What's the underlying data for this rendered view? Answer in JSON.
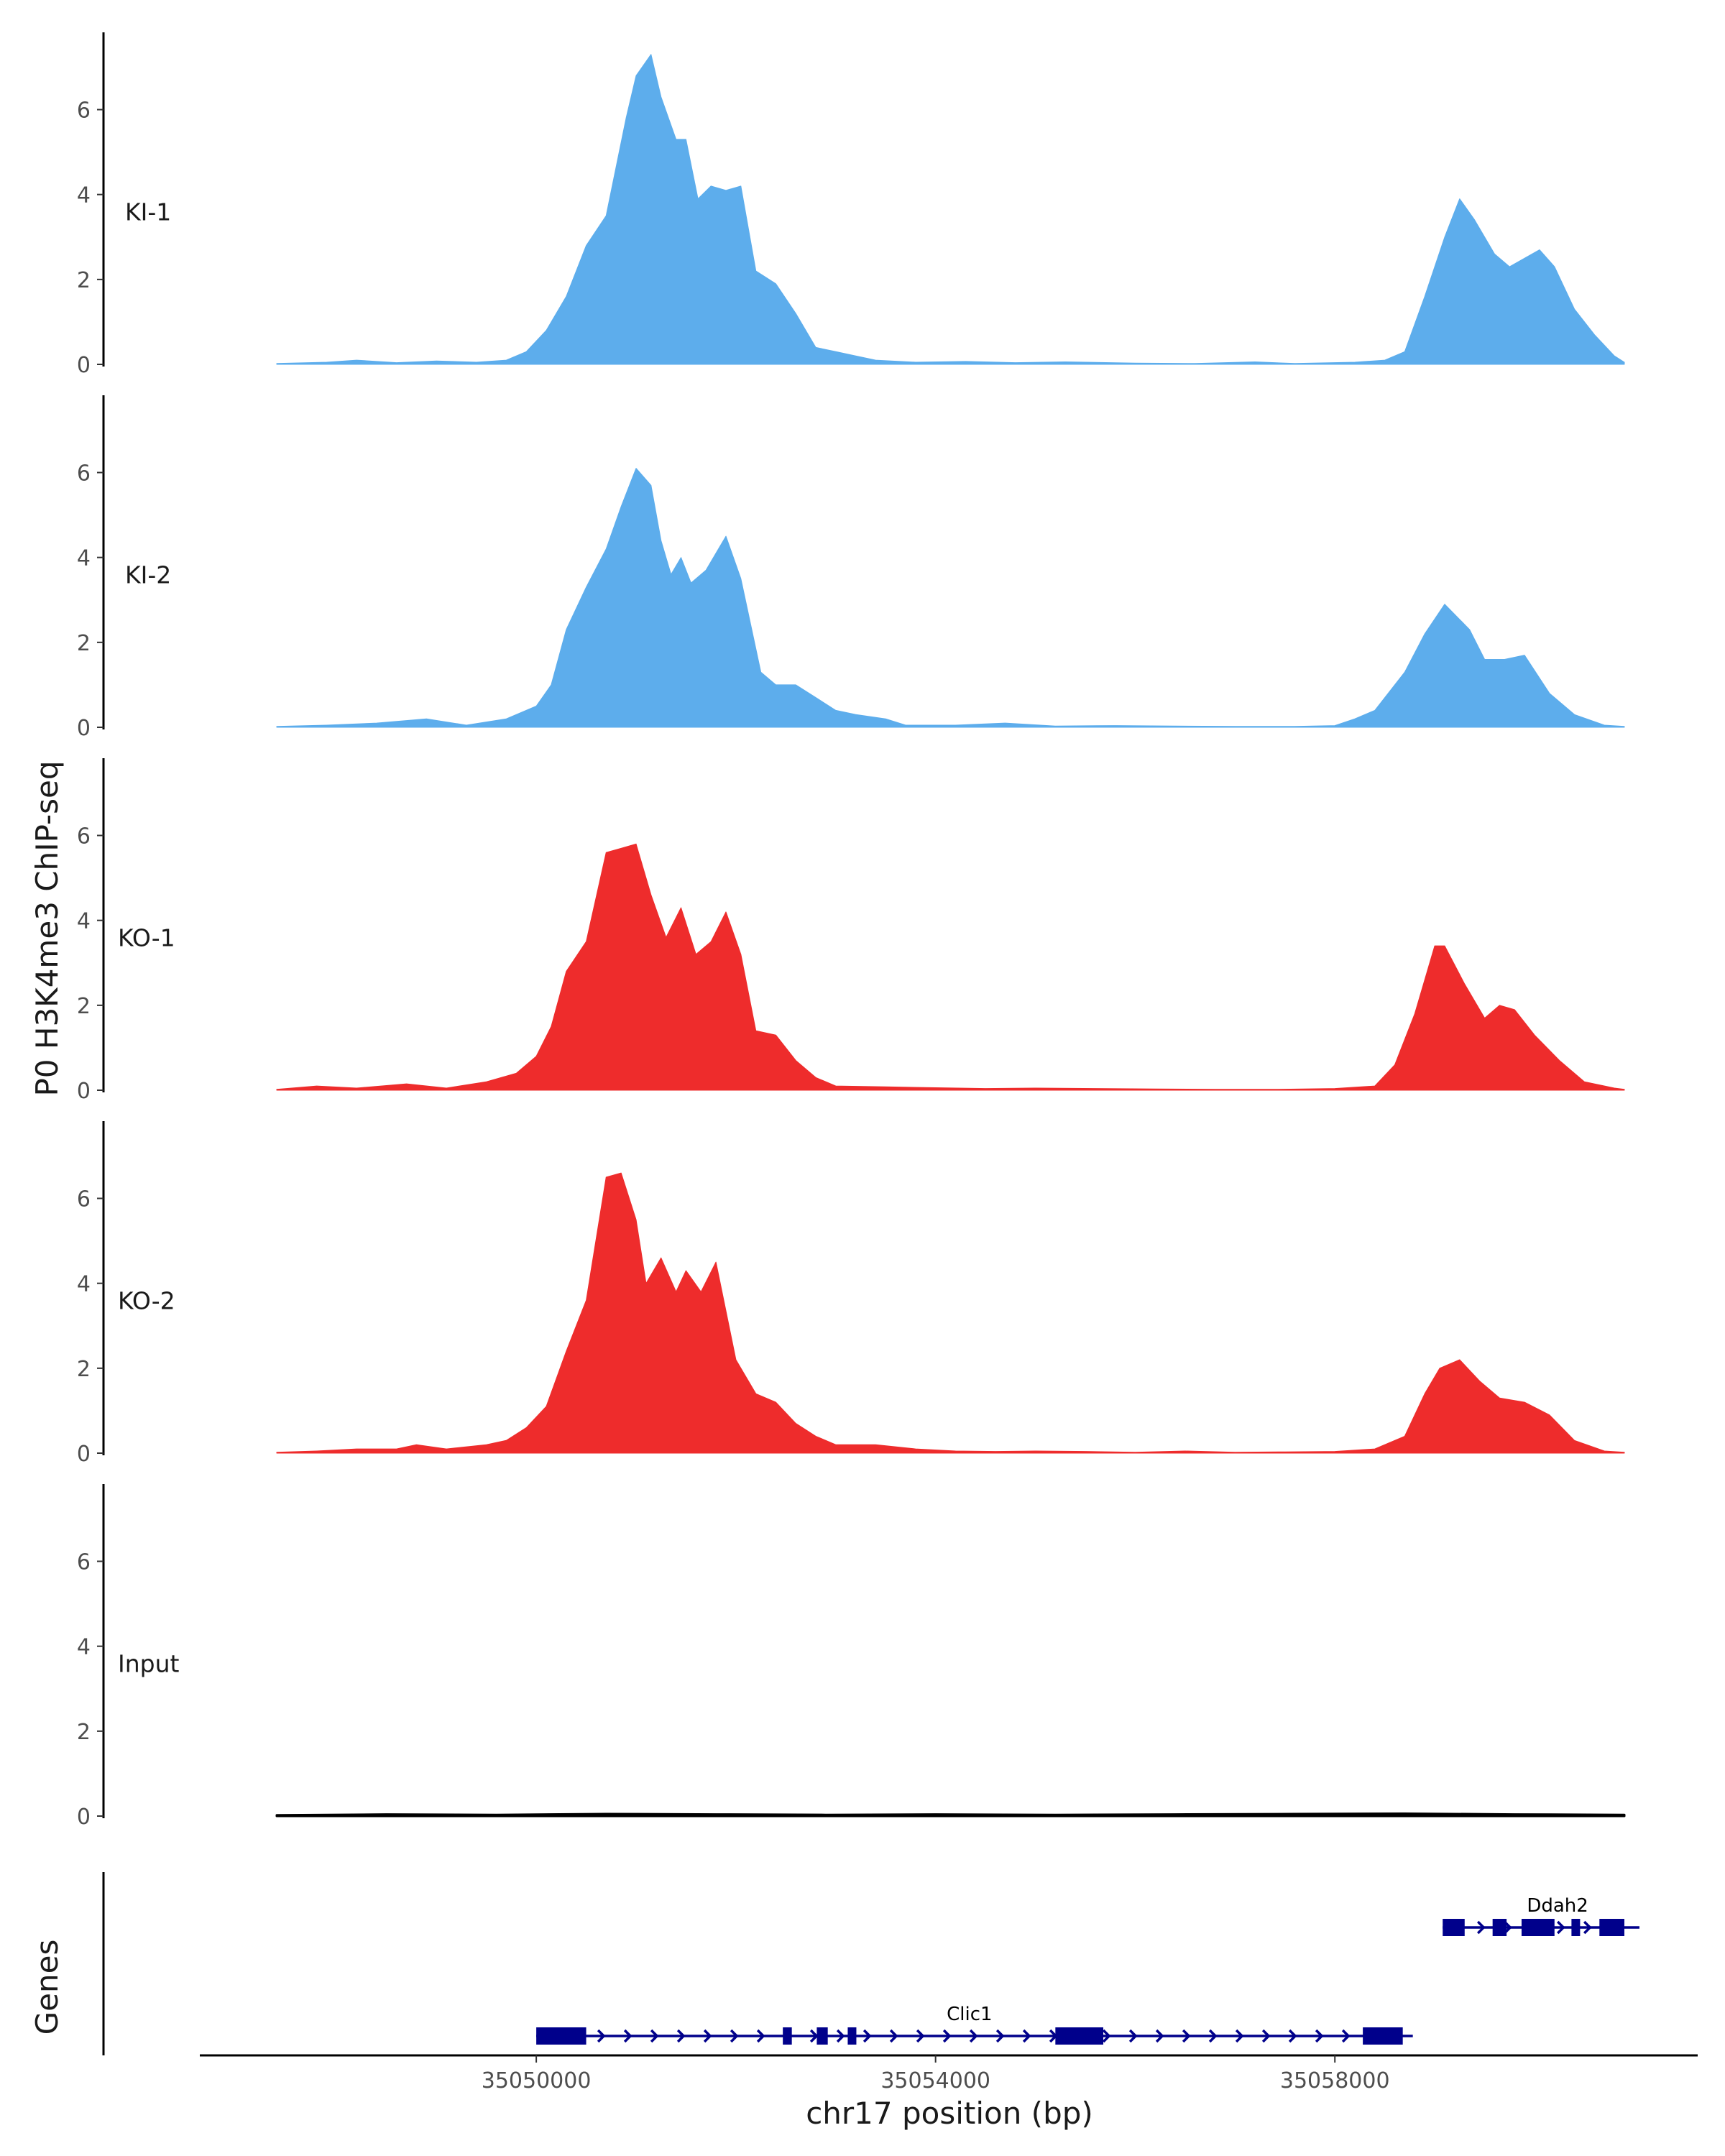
{
  "chart_data": [
    {
      "type": "area",
      "title": "",
      "ylabel": "P0 H3K4me3 ChIP-seq",
      "xlabel": "chr17 position (bp)",
      "xlim": [
        35047400,
        35060900
      ],
      "ylim": [
        0,
        7.6
      ],
      "yticks": [
        0,
        2,
        4,
        6
      ],
      "x_unit": "bp",
      "tracks": [
        {
          "name": "KI-1",
          "color": "#5DADEC",
          "points": [
            [
              35047400,
              0.02
            ],
            [
              35047900,
              0.05
            ],
            [
              35048200,
              0.1
            ],
            [
              35048600,
              0.04
            ],
            [
              35049000,
              0.08
            ],
            [
              35049400,
              0.05
            ],
            [
              35049700,
              0.1
            ],
            [
              35049900,
              0.3
            ],
            [
              35050100,
              0.8
            ],
            [
              35050300,
              1.6
            ],
            [
              35050500,
              2.8
            ],
            [
              35050700,
              3.5
            ],
            [
              35050900,
              5.8
            ],
            [
              35051000,
              6.8
            ],
            [
              35051150,
              7.3
            ],
            [
              35051250,
              6.3
            ],
            [
              35051400,
              5.3
            ],
            [
              35051500,
              5.3
            ],
            [
              35051620,
              3.9
            ],
            [
              35051750,
              4.2
            ],
            [
              35051900,
              4.1
            ],
            [
              35052050,
              4.2
            ],
            [
              35052200,
              2.2
            ],
            [
              35052400,
              1.9
            ],
            [
              35052600,
              1.2
            ],
            [
              35052800,
              0.4
            ],
            [
              35053000,
              0.3
            ],
            [
              35053200,
              0.2
            ],
            [
              35053400,
              0.1
            ],
            [
              35053800,
              0.05
            ],
            [
              35054300,
              0.07
            ],
            [
              35054800,
              0.04
            ],
            [
              35055300,
              0.06
            ],
            [
              35056000,
              0.03
            ],
            [
              35056600,
              0.02
            ],
            [
              35057200,
              0.06
            ],
            [
              35057600,
              0.02
            ],
            [
              35058200,
              0.05
            ],
            [
              35058500,
              0.1
            ],
            [
              35058700,
              0.3
            ],
            [
              35058900,
              1.6
            ],
            [
              35059100,
              3.0
            ],
            [
              35059250,
              3.9
            ],
            [
              35059400,
              3.4
            ],
            [
              35059600,
              2.6
            ],
            [
              35059750,
              2.3
            ],
            [
              35059900,
              2.5
            ],
            [
              35060050,
              2.7
            ],
            [
              35060200,
              2.3
            ],
            [
              35060400,
              1.3
            ],
            [
              35060600,
              0.7
            ],
            [
              35060800,
              0.2
            ],
            [
              35060900,
              0.05
            ]
          ]
        },
        {
          "name": "KI-2",
          "color": "#5DADEC",
          "points": [
            [
              35047400,
              0.02
            ],
            [
              35047900,
              0.05
            ],
            [
              35048400,
              0.1
            ],
            [
              35048900,
              0.2
            ],
            [
              35049300,
              0.05
            ],
            [
              35049700,
              0.2
            ],
            [
              35050000,
              0.5
            ],
            [
              35050150,
              1.0
            ],
            [
              35050300,
              2.3
            ],
            [
              35050500,
              3.3
            ],
            [
              35050700,
              4.2
            ],
            [
              35050850,
              5.2
            ],
            [
              35051000,
              6.1
            ],
            [
              35051150,
              5.7
            ],
            [
              35051250,
              4.4
            ],
            [
              35051350,
              3.6
            ],
            [
              35051450,
              4.0
            ],
            [
              35051550,
              3.4
            ],
            [
              35051700,
              3.7
            ],
            [
              35051900,
              4.5
            ],
            [
              35052050,
              3.5
            ],
            [
              35052250,
              1.3
            ],
            [
              35052400,
              1.0
            ],
            [
              35052600,
              1.0
            ],
            [
              35052800,
              0.7
            ],
            [
              35053000,
              0.4
            ],
            [
              35053200,
              0.3
            ],
            [
              35053500,
              0.2
            ],
            [
              35053700,
              0.05
            ],
            [
              35054200,
              0.05
            ],
            [
              35054700,
              0.1
            ],
            [
              35055200,
              0.03
            ],
            [
              35055800,
              0.04
            ],
            [
              35056400,
              0.03
            ],
            [
              35057000,
              0.02
            ],
            [
              35057600,
              0.02
            ],
            [
              35058000,
              0.04
            ],
            [
              35058200,
              0.2
            ],
            [
              35058400,
              0.4
            ],
            [
              35058700,
              1.3
            ],
            [
              35058900,
              2.2
            ],
            [
              35059100,
              2.9
            ],
            [
              35059350,
              2.3
            ],
            [
              35059500,
              1.6
            ],
            [
              35059700,
              1.6
            ],
            [
              35059900,
              1.7
            ],
            [
              35060150,
              0.8
            ],
            [
              35060400,
              0.3
            ],
            [
              35060700,
              0.05
            ],
            [
              35060900,
              0.02
            ]
          ]
        },
        {
          "name": "KO-1",
          "color": "#EE2C2C",
          "points": [
            [
              35047400,
              0.02
            ],
            [
              35047800,
              0.1
            ],
            [
              35048200,
              0.05
            ],
            [
              35048700,
              0.15
            ],
            [
              35049100,
              0.05
            ],
            [
              35049500,
              0.2
            ],
            [
              35049800,
              0.4
            ],
            [
              35050000,
              0.8
            ],
            [
              35050150,
              1.5
            ],
            [
              35050300,
              2.8
            ],
            [
              35050500,
              3.5
            ],
            [
              35050700,
              5.6
            ],
            [
              35050850,
              5.7
            ],
            [
              35051000,
              5.8
            ],
            [
              35051150,
              4.6
            ],
            [
              35051300,
              3.6
            ],
            [
              35051450,
              4.3
            ],
            [
              35051600,
              3.2
            ],
            [
              35051750,
              3.5
            ],
            [
              35051900,
              4.2
            ],
            [
              35052050,
              3.2
            ],
            [
              35052200,
              1.4
            ],
            [
              35052400,
              1.3
            ],
            [
              35052600,
              0.7
            ],
            [
              35052800,
              0.3
            ],
            [
              35053000,
              0.1
            ],
            [
              35053500,
              0.08
            ],
            [
              35054000,
              0.06
            ],
            [
              35054500,
              0.04
            ],
            [
              35055000,
              0.05
            ],
            [
              35055600,
              0.04
            ],
            [
              35056200,
              0.03
            ],
            [
              35056800,
              0.02
            ],
            [
              35057400,
              0.02
            ],
            [
              35058000,
              0.04
            ],
            [
              35058400,
              0.1
            ],
            [
              35058600,
              0.6
            ],
            [
              35058800,
              1.8
            ],
            [
              35059000,
              3.4
            ],
            [
              35059100,
              3.4
            ],
            [
              35059300,
              2.5
            ],
            [
              35059500,
              1.7
            ],
            [
              35059650,
              2.0
            ],
            [
              35059800,
              1.9
            ],
            [
              35060000,
              1.3
            ],
            [
              35060250,
              0.7
            ],
            [
              35060500,
              0.2
            ],
            [
              35060800,
              0.05
            ],
            [
              35060900,
              0.02
            ]
          ]
        },
        {
          "name": "KO-2",
          "color": "#EE2C2C",
          "points": [
            [
              35047400,
              0.02
            ],
            [
              35047800,
              0.05
            ],
            [
              35048200,
              0.1
            ],
            [
              35048600,
              0.1
            ],
            [
              35048800,
              0.2
            ],
            [
              35049100,
              0.1
            ],
            [
              35049500,
              0.2
            ],
            [
              35049700,
              0.3
            ],
            [
              35049900,
              0.6
            ],
            [
              35050100,
              1.1
            ],
            [
              35050300,
              2.4
            ],
            [
              35050500,
              3.6
            ],
            [
              35050700,
              6.5
            ],
            [
              35050850,
              6.6
            ],
            [
              35051000,
              5.5
            ],
            [
              35051100,
              4.0
            ],
            [
              35051250,
              4.6
            ],
            [
              35051400,
              3.8
            ],
            [
              35051500,
              4.3
            ],
            [
              35051650,
              3.8
            ],
            [
              35051800,
              4.5
            ],
            [
              35052000,
              2.2
            ],
            [
              35052200,
              1.4
            ],
            [
              35052400,
              1.2
            ],
            [
              35052600,
              0.7
            ],
            [
              35052800,
              0.4
            ],
            [
              35053000,
              0.2
            ],
            [
              35053400,
              0.2
            ],
            [
              35053800,
              0.1
            ],
            [
              35054200,
              0.05
            ],
            [
              35054600,
              0.04
            ],
            [
              35055000,
              0.05
            ],
            [
              35055500,
              0.04
            ],
            [
              35056000,
              0.02
            ],
            [
              35056500,
              0.05
            ],
            [
              35057000,
              0.02
            ],
            [
              35057500,
              0.03
            ],
            [
              35058000,
              0.04
            ],
            [
              35058400,
              0.1
            ],
            [
              35058700,
              0.4
            ],
            [
              35058900,
              1.4
            ],
            [
              35059050,
              2.0
            ],
            [
              35059250,
              2.2
            ],
            [
              35059450,
              1.7
            ],
            [
              35059650,
              1.3
            ],
            [
              35059900,
              1.2
            ],
            [
              35060150,
              0.9
            ],
            [
              35060400,
              0.3
            ],
            [
              35060700,
              0.05
            ],
            [
              35060900,
              0.02
            ]
          ]
        },
        {
          "name": "Input",
          "color": "#000000",
          "points": [
            [
              35047400,
              0.02
            ],
            [
              35048500,
              0.04
            ],
            [
              35049600,
              0.03
            ],
            [
              35050700,
              0.05
            ],
            [
              35051800,
              0.04
            ],
            [
              35052900,
              0.03
            ],
            [
              35054000,
              0.04
            ],
            [
              35055200,
              0.03
            ],
            [
              35056400,
              0.04
            ],
            [
              35057600,
              0.05
            ],
            [
              35058700,
              0.06
            ],
            [
              35059800,
              0.04
            ],
            [
              35060900,
              0.03
            ]
          ]
        }
      ]
    },
    {
      "type": "gene_track",
      "ylabel": "Genes",
      "xlabel": "chr17 position (bp)",
      "xlim": [
        35047400,
        35060900
      ],
      "xticks": [
        35050000,
        35054000,
        35058000
      ],
      "xtick_labels": [
        "35050000",
        "35054000",
        "35058000"
      ],
      "color": "#00008B",
      "genes": [
        {
          "name": "Clic1",
          "start": 35050000,
          "end": 35058680,
          "strand": "+",
          "row": 0,
          "exons": [
            [
              35050000,
              35050500
            ],
            [
              35052470,
              35052560
            ],
            [
              35052810,
              35052920
            ],
            [
              35053120,
              35053200
            ],
            [
              35055200,
              35055680
            ],
            [
              35058280,
              35058680
            ]
          ]
        },
        {
          "name": "Ddah2",
          "start": 35059080,
          "end": 35060950,
          "strand": "+",
          "row": 1,
          "exons": [
            [
              35059080,
              35059300
            ],
            [
              35059580,
              35059720
            ],
            [
              35059870,
              35060200
            ],
            [
              35060370,
              35060450
            ],
            [
              35060650,
              35060900
            ]
          ]
        }
      ]
    }
  ]
}
